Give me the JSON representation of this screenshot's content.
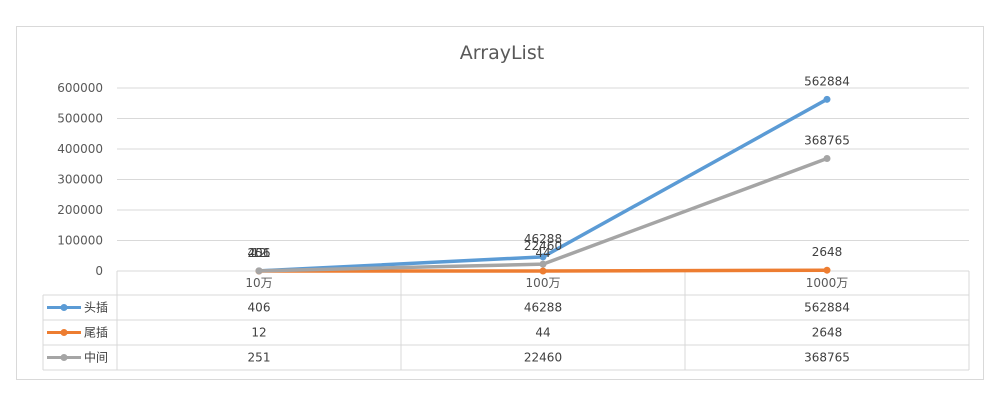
{
  "chart_data": {
    "type": "line",
    "title": "ArrayList",
    "categories": [
      "10万",
      "100万",
      "1000万"
    ],
    "series": [
      {
        "name": "头插",
        "values": [
          406,
          46288,
          562884
        ],
        "color": "#5b9bd5"
      },
      {
        "name": "尾插",
        "values": [
          12,
          44,
          2648
        ],
        "color": "#ed7d31"
      },
      {
        "name": "中间",
        "values": [
          251,
          22460,
          368765
        ],
        "color": "#a5a5a5"
      }
    ],
    "ylim": [
      0,
      600000
    ],
    "yticks": [
      0,
      100000,
      200000,
      300000,
      400000,
      500000,
      600000
    ],
    "grid": true,
    "legend": "data-table"
  }
}
